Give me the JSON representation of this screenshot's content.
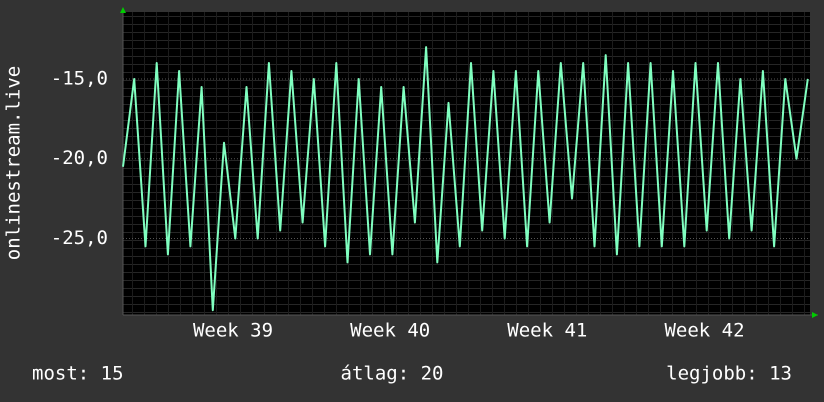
{
  "chart_data": {
    "type": "line",
    "ylabel": "onlinestream.live",
    "x": [
      0,
      0.5,
      1,
      1.5,
      2,
      2.5,
      3,
      3.5,
      4,
      4.5,
      5,
      5.5,
      6,
      6.5,
      7,
      7.5,
      8,
      8.5,
      9,
      9.5,
      10,
      10.5,
      11,
      11.5,
      12,
      12.5,
      13,
      13.5,
      14,
      14.5,
      15,
      15.5,
      16,
      16.5,
      17,
      17.5,
      18,
      18.5,
      19,
      19.5,
      20,
      20.5,
      21,
      21.5,
      22,
      22.5,
      23,
      23.5,
      24,
      24.5,
      25,
      25.5,
      26,
      26.5,
      27,
      27.5,
      28,
      28.5,
      29,
      29.5,
      30,
      30.5
    ],
    "values": [
      -20.5,
      -15,
      -25.5,
      -14,
      -26,
      -14.5,
      -25.5,
      -15.5,
      -29.5,
      -19,
      -25,
      -15.5,
      -25,
      -14,
      -24.5,
      -14.5,
      -24,
      -15,
      -25.5,
      -14,
      -26.5,
      -15,
      -26,
      -15.5,
      -26,
      -15.5,
      -24,
      -13,
      -26.5,
      -16.5,
      -25.5,
      -14,
      -24.5,
      -14.5,
      -25,
      -14.5,
      -25.5,
      -14.5,
      -24,
      -14,
      -22.5,
      -14,
      -25.5,
      -13.5,
      -26,
      -14,
      -25.5,
      -14,
      -25.5,
      -14.5,
      -25.5,
      -14,
      -24.5,
      -14,
      -25,
      -15,
      -24.5,
      -14.5,
      -25.5,
      -15,
      -20,
      -15
    ],
    "color": "#80ffc0",
    "xlim": [
      0,
      30.6
    ],
    "xticks": [
      {
        "value": 4.9,
        "label": "Week 39"
      },
      {
        "value": 11.9,
        "label": "Week 40"
      },
      {
        "value": 18.9,
        "label": "Week 41"
      },
      {
        "value": 25.9,
        "label": "Week 42"
      }
    ],
    "ylim": [
      -29.8,
      -10.8
    ],
    "yticks": [
      {
        "value": -15,
        "label": "-15,0"
      },
      {
        "value": -20,
        "label": "-20,0"
      },
      {
        "value": -25,
        "label": "-25,0"
      }
    ],
    "grid": true,
    "stats": [
      "most: 15",
      "átlag: 20",
      "legjobb: 13"
    ]
  }
}
